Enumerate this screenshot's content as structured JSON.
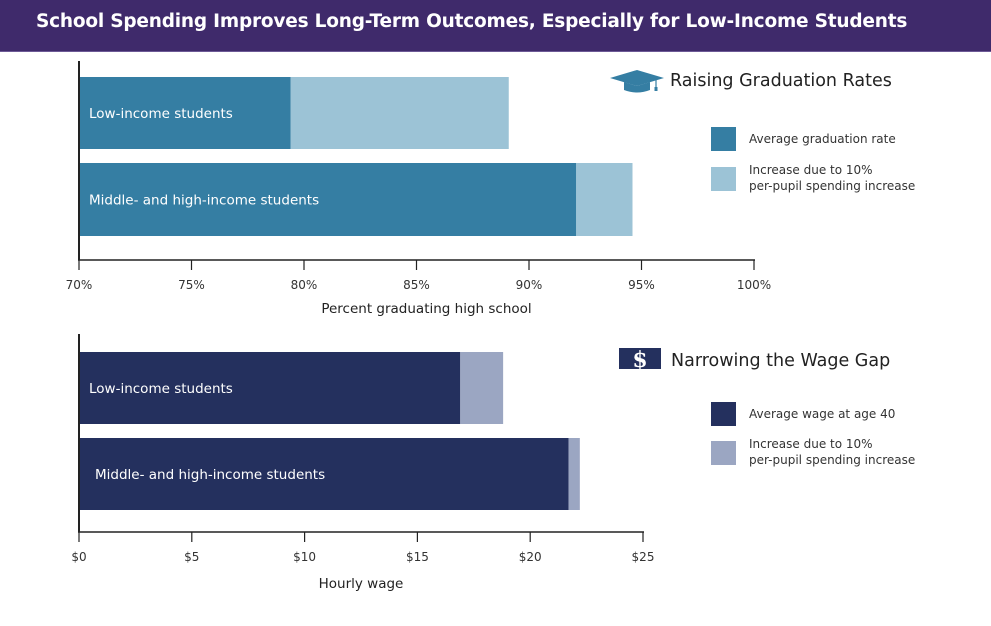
{
  "header": {
    "title": "School Spending Improves Long-Term Outcomes, Especially for Low-Income Students"
  },
  "chart_data": [
    {
      "type": "bar",
      "orientation": "horizontal",
      "stacked": true,
      "title": "Raising Graduation Rates",
      "title_icon": "graduation-cap-icon",
      "categories": [
        "Low-income students",
        "Middle- and high-income students"
      ],
      "series": [
        {
          "name": "Average graduation rate",
          "values": [
            79.4,
            92.1
          ],
          "color": "#357ea3"
        },
        {
          "name": "Increase due to 10% per-pupil spending increase",
          "values": [
            9.7,
            2.5
          ],
          "color": "#9cc3d6"
        }
      ],
      "legend_lines": [
        [
          "Average graduation rate"
        ],
        [
          "Increase due to 10%",
          "per-pupil spending increase"
        ]
      ],
      "xlabel": "Percent graduating high school",
      "ylabel": "",
      "xlim": [
        70,
        100
      ],
      "xticks": [
        70,
        75,
        80,
        85,
        90,
        95,
        100
      ],
      "xtick_labels": [
        "70%",
        "75%",
        "80%",
        "85%",
        "90%",
        "95%",
        "100%"
      ],
      "grid": false,
      "legend_position": "right"
    },
    {
      "type": "bar",
      "orientation": "horizontal",
      "stacked": true,
      "title": "Narrowing the Wage Gap",
      "title_icon": "dollar-bill-icon",
      "categories": [
        "Low-income students",
        "Middle- and high-income students"
      ],
      "series": [
        {
          "name": "Average wage at age 40",
          "values": [
            16.9,
            21.7
          ],
          "color": "#24305e"
        },
        {
          "name": "Increase due to 10% per-pupil spending increase",
          "values": [
            1.9,
            0.5
          ],
          "color": "#9ba6c2"
        }
      ],
      "legend_lines": [
        [
          "Average wage at age 40"
        ],
        [
          "Increase due to 10%",
          "per-pupil spending increase"
        ]
      ],
      "xlabel": "Hourly wage",
      "ylabel": "",
      "xlim": [
        0,
        25
      ],
      "xticks": [
        0,
        5,
        10,
        15,
        20,
        25
      ],
      "xtick_labels": [
        "$0",
        "$5",
        "$10",
        "$15",
        "$20",
        "$25"
      ],
      "grid": false,
      "legend_position": "right"
    }
  ]
}
